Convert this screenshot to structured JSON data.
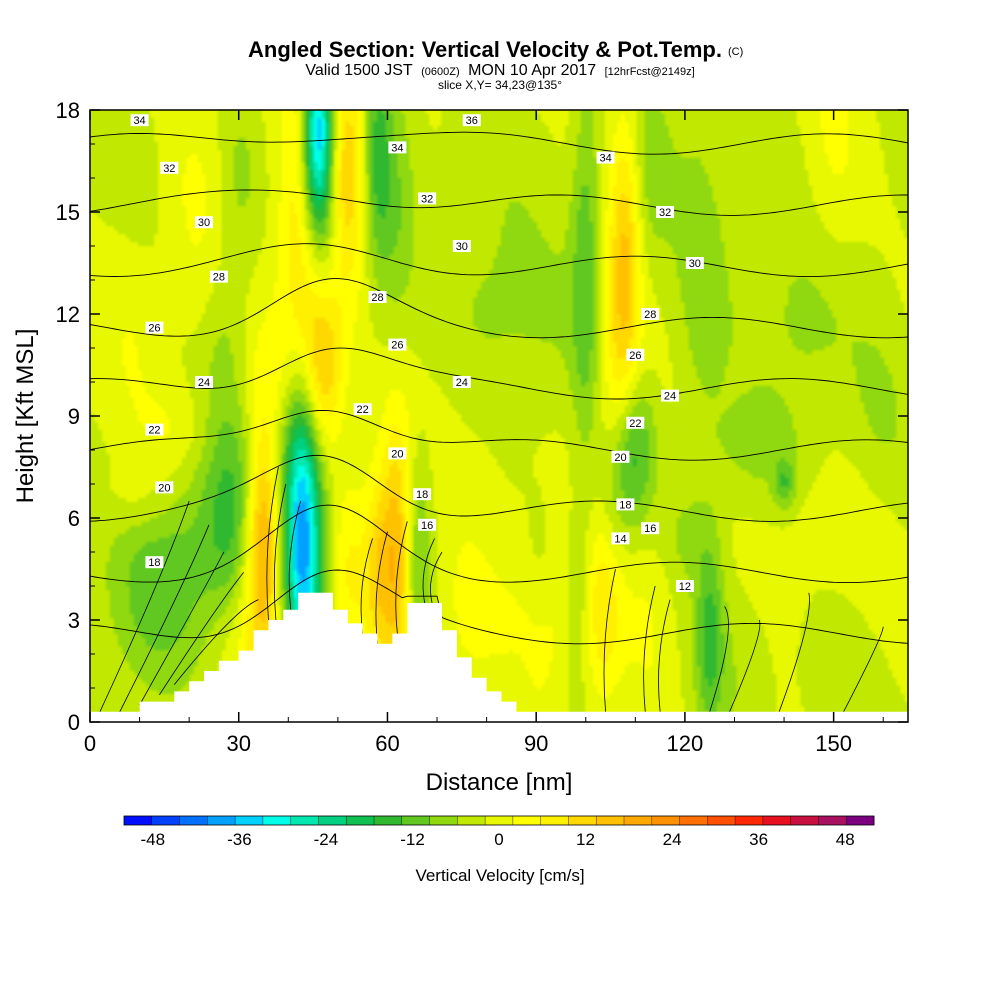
{
  "title": {
    "main": "Angled Section: Vertical Velocity & Pot.Temp.",
    "copyright": "(C)",
    "valid_prefix": "Valid 1500 JST",
    "valid_utc": "(0600Z)",
    "valid_date": "MON 10 Apr 2017",
    "forecast": "[12hrFcst@2149z]",
    "slice": "slice X,Y= 34,23@135°"
  },
  "chart_data": {
    "type": "heatmap",
    "xlabel": "Distance [nm]",
    "ylabel": "Height [Kft MSL]",
    "xlim": [
      0,
      165
    ],
    "ylim": [
      0,
      18
    ],
    "xticks": [
      0,
      30,
      60,
      90,
      120,
      150
    ],
    "yticks": [
      0,
      3,
      6,
      9,
      12,
      15,
      18
    ],
    "grid": false,
    "colorbar": {
      "label": "Vertical Velocity [cm/s]",
      "placement": "bottom",
      "ticks": [
        -48,
        -36,
        -24,
        -12,
        0,
        12,
        24,
        36,
        48
      ],
      "bounds": [
        -52,
        52
      ],
      "step": 4,
      "colors": [
        "#0010ff",
        "#0040ff",
        "#0070ff",
        "#00a0ff",
        "#00d0ff",
        "#00ffe8",
        "#00e8b0",
        "#00d080",
        "#10c050",
        "#30b830",
        "#60c820",
        "#90d810",
        "#c0e800",
        "#e8f800",
        "#ffff00",
        "#fff000",
        "#ffd800",
        "#ffc000",
        "#ffa800",
        "#ff9000",
        "#ff7000",
        "#ff5000",
        "#ff2800",
        "#e81020",
        "#c81040",
        "#a81060",
        "#7a0080"
      ]
    },
    "terrain_profile": {
      "x": [
        0,
        10,
        10,
        17,
        17,
        20,
        20,
        23,
        23,
        26,
        26,
        30,
        30,
        33,
        33,
        36,
        36,
        39,
        39,
        42,
        42,
        49,
        49,
        52,
        52,
        55,
        55,
        58,
        58,
        61,
        61,
        64,
        64,
        71,
        71,
        74,
        74,
        77,
        77,
        80,
        80,
        83,
        83,
        86,
        86,
        90,
        90,
        165
      ],
      "y": [
        0.3,
        0.3,
        0.6,
        0.6,
        0.9,
        0.9,
        1.2,
        1.2,
        1.5,
        1.5,
        1.8,
        1.8,
        2.1,
        2.1,
        2.7,
        2.7,
        3.0,
        3.0,
        3.3,
        3.3,
        3.8,
        3.8,
        3.3,
        3.3,
        2.9,
        2.9,
        2.6,
        2.6,
        2.3,
        2.3,
        2.6,
        2.6,
        3.5,
        3.5,
        2.7,
        2.7,
        1.9,
        1.9,
        1.3,
        1.3,
        0.9,
        0.9,
        0.6,
        0.6,
        0.3,
        0.3,
        0.3,
        0.3
      ]
    },
    "velocity_features": [
      {
        "x": 35,
        "y": 5.5,
        "dx": 2.5,
        "dy": 2.5,
        "value": 22
      },
      {
        "x": 33,
        "y": 4.0,
        "dx": 5,
        "dy": 3,
        "value": 8
      },
      {
        "x": 29,
        "y": 5.8,
        "dx": 4,
        "dy": 2,
        "value": -12
      },
      {
        "x": 20,
        "y": 5.0,
        "dx": 10,
        "dy": 2.2,
        "value": -7
      },
      {
        "x": 13,
        "y": 3.5,
        "dx": 7,
        "dy": 2,
        "value": -5
      },
      {
        "x": 43,
        "y": 5.5,
        "dx": 2.3,
        "dy": 3.5,
        "value": -28
      },
      {
        "x": 40,
        "y": 6.0,
        "dx": 3,
        "dy": 2.5,
        "value": -14
      },
      {
        "x": 46,
        "y": 5.0,
        "dx": 3,
        "dy": 2.5,
        "value": -10
      },
      {
        "x": 62,
        "y": 4.8,
        "dx": 2.3,
        "dy": 2.8,
        "value": 20
      },
      {
        "x": 58,
        "y": 4.5,
        "dx": 2,
        "dy": 2,
        "value": 12
      },
      {
        "x": 66,
        "y": 5.0,
        "dx": 2,
        "dy": 2.3,
        "value": -10
      },
      {
        "x": 52,
        "y": 4.5,
        "dx": 3,
        "dy": 2,
        "value": 8
      },
      {
        "x": 47,
        "y": 10.5,
        "dx": 3,
        "dy": 1.8,
        "value": 16
      },
      {
        "x": 44,
        "y": 12.5,
        "dx": 3,
        "dy": 2.5,
        "value": 10
      },
      {
        "x": 42,
        "y": 15.5,
        "dx": 3,
        "dy": 3,
        "value": 8
      },
      {
        "x": 52,
        "y": 16.5,
        "dx": 2.5,
        "dy": 2.5,
        "value": 16
      },
      {
        "x": 46,
        "y": 17.5,
        "dx": 2,
        "dy": 1.8,
        "value": -28
      },
      {
        "x": 46,
        "y": 15.5,
        "dx": 2.5,
        "dy": 2.5,
        "value": -14
      },
      {
        "x": 58,
        "y": 16.5,
        "dx": 2,
        "dy": 2.5,
        "value": -12
      },
      {
        "x": 62,
        "y": 14.5,
        "dx": 2.5,
        "dy": 3,
        "value": -6
      },
      {
        "x": 38,
        "y": 10,
        "dx": 4,
        "dy": 3,
        "value": 5
      },
      {
        "x": 27,
        "y": 11,
        "dx": 3,
        "dy": 2,
        "value": -5
      },
      {
        "x": 9,
        "y": 13,
        "dx": 4,
        "dy": 4,
        "value": 3
      },
      {
        "x": 10,
        "y": 16,
        "dx": 4,
        "dy": 2,
        "value": -4
      },
      {
        "x": 22,
        "y": 15,
        "dx": 5,
        "dy": 3,
        "value": 3
      },
      {
        "x": 30,
        "y": 16,
        "dx": 3,
        "dy": 2,
        "value": -5
      },
      {
        "x": 17,
        "y": 8.5,
        "dx": 5,
        "dy": 1,
        "value": 5
      },
      {
        "x": 10,
        "y": 6.5,
        "dx": 6,
        "dy": 0.8,
        "value": 4
      },
      {
        "x": 35,
        "y": 8,
        "dx": 5,
        "dy": 1.2,
        "value": -4
      },
      {
        "x": 80,
        "y": 14,
        "dx": 8,
        "dy": 3,
        "value": -5
      },
      {
        "x": 100,
        "y": 13.5,
        "dx": 2,
        "dy": 4,
        "value": -10
      },
      {
        "x": 108,
        "y": 14,
        "dx": 2.2,
        "dy": 3,
        "value": 14
      },
      {
        "x": 106,
        "y": 11,
        "dx": 3,
        "dy": 2.5,
        "value": 8
      },
      {
        "x": 113,
        "y": 16,
        "dx": 3,
        "dy": 2,
        "value": -5
      },
      {
        "x": 123,
        "y": 13,
        "dx": 4,
        "dy": 4,
        "value": -6
      },
      {
        "x": 135,
        "y": 14,
        "dx": 6,
        "dy": 3,
        "value": -4
      },
      {
        "x": 150,
        "y": 16.5,
        "dx": 4,
        "dy": 2.5,
        "value": 4
      },
      {
        "x": 145,
        "y": 11.5,
        "dx": 6,
        "dy": 2,
        "value": -4
      },
      {
        "x": 160,
        "y": 9,
        "dx": 5,
        "dy": 2,
        "value": -4
      },
      {
        "x": 110,
        "y": 8,
        "dx": 3,
        "dy": 1.5,
        "value": -13
      },
      {
        "x": 106,
        "y": 6.5,
        "dx": 3,
        "dy": 1.5,
        "value": -6
      },
      {
        "x": 120,
        "y": 5.5,
        "dx": 4,
        "dy": 1,
        "value": -4
      },
      {
        "x": 103,
        "y": 3.2,
        "dx": 3,
        "dy": 2,
        "value": 11
      },
      {
        "x": 92,
        "y": 3.2,
        "dx": 3,
        "dy": 2,
        "value": 5
      },
      {
        "x": 84,
        "y": 3.5,
        "dx": 6,
        "dy": 1.5,
        "value": 3
      },
      {
        "x": 99,
        "y": 3.8,
        "dx": 2,
        "dy": 2,
        "value": -6
      },
      {
        "x": 91,
        "y": 4.5,
        "dx": 2,
        "dy": 1.5,
        "value": -4
      },
      {
        "x": 113,
        "y": 3.0,
        "dx": 4,
        "dy": 2.5,
        "value": 4
      },
      {
        "x": 125,
        "y": 2.5,
        "dx": 2,
        "dy": 2,
        "value": -12
      },
      {
        "x": 132,
        "y": 1.5,
        "dx": 5,
        "dy": 2,
        "value": -3
      },
      {
        "x": 150,
        "y": 1.5,
        "dx": 6,
        "dy": 2,
        "value": -4
      },
      {
        "x": 145,
        "y": 5,
        "dx": 10,
        "dy": 2,
        "value": 3
      },
      {
        "x": 135,
        "y": 8,
        "dx": 8,
        "dy": 1,
        "value": -4
      },
      {
        "x": 140,
        "y": 7,
        "dx": 1.5,
        "dy": 0.5,
        "value": -10
      },
      {
        "x": 75,
        "y": 3.0,
        "dx": 4,
        "dy": 2,
        "value": 4
      },
      {
        "x": 80,
        "y": 8,
        "dx": 8,
        "dy": 2,
        "value": 3
      },
      {
        "x": 90,
        "y": 11,
        "dx": 8,
        "dy": 2,
        "value": -3
      }
    ],
    "isentropes": {
      "name": "Pot.Temp.",
      "levels": [
        12,
        14,
        16,
        18,
        20,
        22,
        24,
        26,
        28,
        30,
        32,
        34,
        36
      ],
      "line_color": "#000000",
      "labels": [
        {
          "x": 10,
          "y": 17.7,
          "text": "34"
        },
        {
          "x": 16,
          "y": 16.3,
          "text": "32"
        },
        {
          "x": 23,
          "y": 14.7,
          "text": "30"
        },
        {
          "x": 26,
          "y": 13.1,
          "text": "28"
        },
        {
          "x": 13,
          "y": 11.6,
          "text": "26"
        },
        {
          "x": 23,
          "y": 10.0,
          "text": "24"
        },
        {
          "x": 13,
          "y": 8.6,
          "text": "22"
        },
        {
          "x": 15,
          "y": 6.9,
          "text": "20"
        },
        {
          "x": 13,
          "y": 4.7,
          "text": "18"
        },
        {
          "x": 77,
          "y": 17.7,
          "text": "36"
        },
        {
          "x": 62,
          "y": 16.9,
          "text": "34"
        },
        {
          "x": 68,
          "y": 15.4,
          "text": "32"
        },
        {
          "x": 75,
          "y": 14.0,
          "text": "30"
        },
        {
          "x": 58,
          "y": 12.5,
          "text": "28"
        },
        {
          "x": 62,
          "y": 11.1,
          "text": "26"
        },
        {
          "x": 75,
          "y": 10.0,
          "text": "24"
        },
        {
          "x": 55,
          "y": 9.2,
          "text": "22"
        },
        {
          "x": 62,
          "y": 7.9,
          "text": "20"
        },
        {
          "x": 67,
          "y": 6.7,
          "text": "18"
        },
        {
          "x": 68,
          "y": 5.8,
          "text": "16"
        },
        {
          "x": 104,
          "y": 16.6,
          "text": "34"
        },
        {
          "x": 116,
          "y": 15.0,
          "text": "32"
        },
        {
          "x": 122,
          "y": 13.5,
          "text": "30"
        },
        {
          "x": 113,
          "y": 12.0,
          "text": "28"
        },
        {
          "x": 110,
          "y": 10.8,
          "text": "26"
        },
        {
          "x": 117,
          "y": 9.6,
          "text": "24"
        },
        {
          "x": 110,
          "y": 8.8,
          "text": "22"
        },
        {
          "x": 107,
          "y": 7.8,
          "text": "20"
        },
        {
          "x": 108,
          "y": 6.4,
          "text": "18"
        },
        {
          "x": 113,
          "y": 5.7,
          "text": "16"
        },
        {
          "x": 107,
          "y": 5.4,
          "text": "14"
        },
        {
          "x": 120,
          "y": 4.0,
          "text": "12"
        }
      ]
    }
  }
}
